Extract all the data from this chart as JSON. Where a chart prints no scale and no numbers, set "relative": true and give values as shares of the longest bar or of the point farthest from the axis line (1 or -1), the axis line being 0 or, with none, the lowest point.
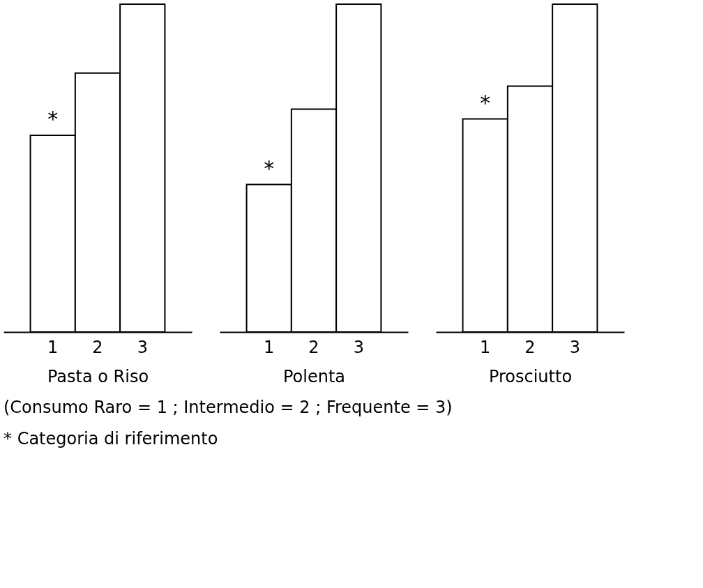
{
  "chart_data": [
    {
      "type": "bar",
      "relative": true,
      "categories": [
        "1",
        "2",
        "3"
      ],
      "values": [
        0.6,
        0.79,
        1
      ],
      "color": "#ffffff",
      "xlabel": "Pasta o Riso",
      "annotations": [
        {
          "text": "*",
          "x": "1",
          "y": 0.6
        },
        "(Consumo Raro = 1 ; Intermedio = 2 ; Frequente = 3)",
        "* Categoria di riferimento"
      ]
    },
    {
      "type": "bar",
      "relative": true,
      "categories": [
        "1",
        "2",
        "3"
      ],
      "values": [
        0.45,
        0.68,
        1
      ],
      "color": "#ffffff",
      "xlabel": "Polenta",
      "annotations": [
        {
          "text": "*",
          "x": "1",
          "y": 0.45
        }
      ]
    },
    {
      "type": "bar",
      "relative": true,
      "categories": [
        "1",
        "2",
        "3"
      ],
      "values": [
        0.65,
        0.75,
        1
      ],
      "color": "#ffffff",
      "xlabel": "Prosciutto",
      "annotations": [
        {
          "text": "*",
          "x": "1",
          "y": 0.65
        }
      ]
    }
  ]
}
